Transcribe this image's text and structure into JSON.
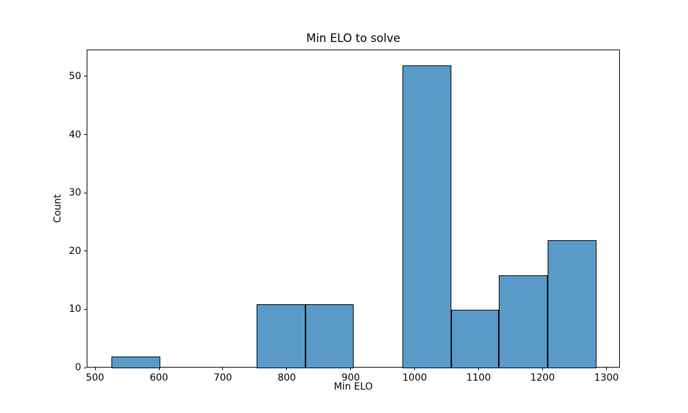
{
  "chart_data": {
    "type": "bar",
    "subtype": "histogram",
    "title": "Min ELO to solve",
    "xlabel": "Min ELO",
    "ylabel": "Count",
    "bin_edges": [
      525,
      601,
      677,
      752,
      828,
      904,
      980,
      1056,
      1131,
      1207,
      1283
    ],
    "counts": [
      2,
      0,
      0,
      11,
      11,
      0,
      52,
      10,
      16,
      22
    ],
    "x_ticks": [
      500,
      600,
      700,
      800,
      900,
      1000,
      1100,
      1200,
      1300
    ],
    "y_ticks": [
      0,
      10,
      20,
      30,
      40,
      50
    ],
    "xlim": [
      487,
      1321
    ],
    "ylim": [
      0,
      54.6
    ],
    "grid": false,
    "legend_position": null,
    "bar_color": "#5A9AC8",
    "bar_edge_color": "#000000",
    "axis_color": "#000000",
    "text_color": "#000000",
    "background_color": "#ffffff"
  }
}
